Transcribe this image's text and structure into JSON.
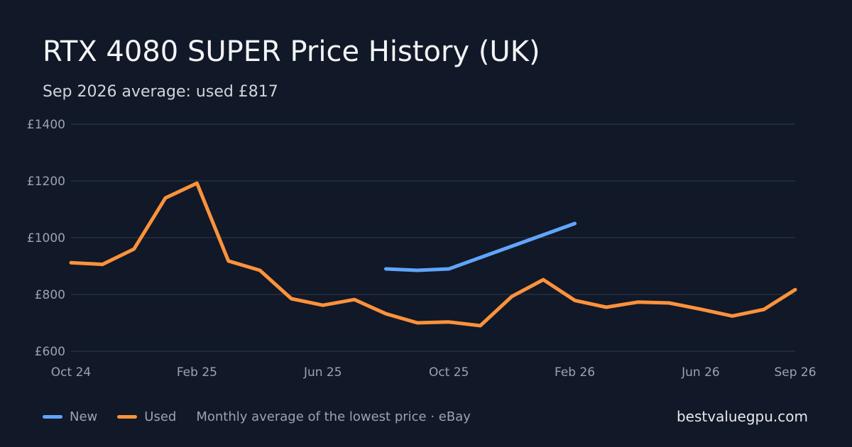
{
  "title": "RTX 4080 SUPER Price History (UK)",
  "subtitle": "Sep 2026 average: used £817",
  "footer": {
    "legend": [
      {
        "label": "New",
        "color": "#60a5fa"
      },
      {
        "label": "Used",
        "color": "#fb923c"
      }
    ],
    "note": "Monthly average of the lowest price · eBay",
    "brand": "bestvaluegpu.com"
  },
  "chart_data": {
    "type": "line",
    "x": [
      "2024-10",
      "2024-11",
      "2024-12",
      "2025-01",
      "2025-02",
      "2025-03",
      "2025-04",
      "2025-05",
      "2025-06",
      "2025-07",
      "2025-08",
      "2025-09",
      "2025-10",
      "2025-11",
      "2025-12",
      "2026-01",
      "2026-02",
      "2026-03",
      "2026-04",
      "2026-05",
      "2026-06",
      "2026-07",
      "2026-08",
      "2026-09"
    ],
    "x_tick_labels": [
      {
        "x": "2024-10",
        "label": "Oct 24"
      },
      {
        "x": "2025-02",
        "label": "Feb 25"
      },
      {
        "x": "2025-06",
        "label": "Jun 25"
      },
      {
        "x": "2025-10",
        "label": "Oct 25"
      },
      {
        "x": "2026-02",
        "label": "Feb 26"
      },
      {
        "x": "2026-06",
        "label": "Jun 26"
      },
      {
        "x": "2026-09",
        "label": "Sep 26"
      }
    ],
    "y_ticks": [
      600,
      800,
      1000,
      1200,
      1400
    ],
    "y_tick_labels": [
      "£600",
      "£800",
      "£1000",
      "£1200",
      "£1400"
    ],
    "ylim": [
      600,
      1400
    ],
    "grid": true,
    "series": [
      {
        "name": "New",
        "color": "#60a5fa",
        "values": [
          null,
          null,
          null,
          null,
          null,
          null,
          null,
          null,
          null,
          null,
          890,
          885,
          890,
          930,
          970,
          1010,
          1050,
          null,
          null,
          null,
          null,
          null,
          null,
          null
        ]
      },
      {
        "name": "Used",
        "color": "#fb923c",
        "values": [
          912,
          906,
          960,
          1140,
          1192,
          918,
          885,
          785,
          762,
          782,
          732,
          700,
          703,
          690,
          793,
          852,
          779,
          755,
          773,
          770,
          748,
          724,
          747,
          817
        ]
      }
    ]
  }
}
